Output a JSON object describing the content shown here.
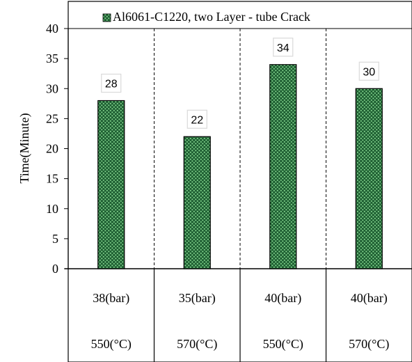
{
  "chart_data": {
    "type": "bar",
    "legend": "Al6061-C1220, two Layer - tube Crack",
    "legend_position": "top",
    "ylabel": "Time(Minute)",
    "xlabel": "",
    "ylim": [
      0,
      40
    ],
    "y_ticks": [
      0,
      5,
      10,
      15,
      20,
      25,
      30,
      35,
      40
    ],
    "grid": false,
    "categories": [
      {
        "pressure": "38(bar)",
        "temperature": "550(°C)"
      },
      {
        "pressure": "35(bar)",
        "temperature": "570(°C)"
      },
      {
        "pressure": "40(bar)",
        "temperature": "550(°C)"
      },
      {
        "pressure": "40(bar)",
        "temperature": "570(°C)"
      }
    ],
    "series": [
      {
        "name": "Al6061-C1220, two Layer - tube Crack",
        "values": [
          28,
          22,
          34,
          30
        ]
      }
    ],
    "data_labels": [
      "28",
      "22",
      "34",
      "30"
    ],
    "colors": {
      "bar_fill": "#1e5e32",
      "bar_dots": "#7fd08a",
      "axis": "#000000",
      "label_box": "#d9d9d9"
    }
  }
}
